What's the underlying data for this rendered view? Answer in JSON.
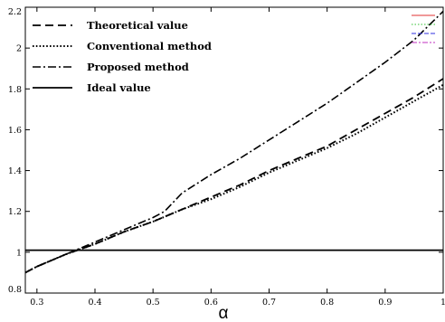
{
  "chart_data": {
    "type": "line",
    "xlabel": "α",
    "ylabel": "",
    "xlim": [
      0.28,
      1.0
    ],
    "ylim": [
      0.8,
      2.2
    ],
    "xticks": [
      "0.3",
      "0.4",
      "0.5",
      "0.6",
      "0.7",
      "0.8",
      "0.9",
      "1"
    ],
    "xtick_values": [
      0.3,
      0.4,
      0.5,
      0.6,
      0.7,
      0.8,
      0.9,
      1.0
    ],
    "yticks": [
      "0.8",
      "1",
      "1.2",
      "1.4",
      "1.6",
      "1.8",
      "2",
      "2.2"
    ],
    "ytick_values": [
      0.8,
      1.0,
      1.2,
      1.4,
      1.6,
      1.8,
      2.0,
      2.2
    ],
    "legend_position": "top-left",
    "grid": false,
    "series": [
      {
        "name": "Theoretical value",
        "style": "dashed",
        "x": [
          0.28,
          0.3,
          0.35,
          0.4,
          0.45,
          0.5,
          0.55,
          0.6,
          0.65,
          0.7,
          0.75,
          0.8,
          0.85,
          0.9,
          0.95,
          1.0
        ],
        "y": [
          0.9,
          0.93,
          0.99,
          1.04,
          1.1,
          1.15,
          1.21,
          1.27,
          1.33,
          1.4,
          1.46,
          1.52,
          1.6,
          1.68,
          1.76,
          1.85
        ]
      },
      {
        "name": "Conventional method",
        "style": "dotted",
        "x": [
          0.28,
          0.3,
          0.35,
          0.4,
          0.45,
          0.5,
          0.55,
          0.6,
          0.65,
          0.7,
          0.75,
          0.8,
          0.85,
          0.9,
          0.95,
          1.0
        ],
        "y": [
          0.9,
          0.93,
          0.99,
          1.04,
          1.1,
          1.15,
          1.21,
          1.26,
          1.32,
          1.39,
          1.45,
          1.51,
          1.58,
          1.66,
          1.74,
          1.82
        ]
      },
      {
        "name": "Proposed method",
        "style": "dashdot",
        "x": [
          0.28,
          0.3,
          0.35,
          0.4,
          0.45,
          0.5,
          0.52,
          0.55,
          0.6,
          0.65,
          0.7,
          0.75,
          0.8,
          0.85,
          0.9,
          0.95,
          1.0
        ],
        "y": [
          0.9,
          0.93,
          0.99,
          1.05,
          1.11,
          1.17,
          1.2,
          1.29,
          1.38,
          1.46,
          1.55,
          1.64,
          1.73,
          1.83,
          1.93,
          2.04,
          2.18
        ]
      },
      {
        "name": "Ideal value",
        "style": "solid",
        "x": [
          0.28,
          1.0
        ],
        "y": [
          1.01,
          1.01
        ]
      }
    ],
    "swatch_colors": [
      "#e03030",
      "#30c030",
      "#3030e0",
      "#c030c0"
    ]
  }
}
